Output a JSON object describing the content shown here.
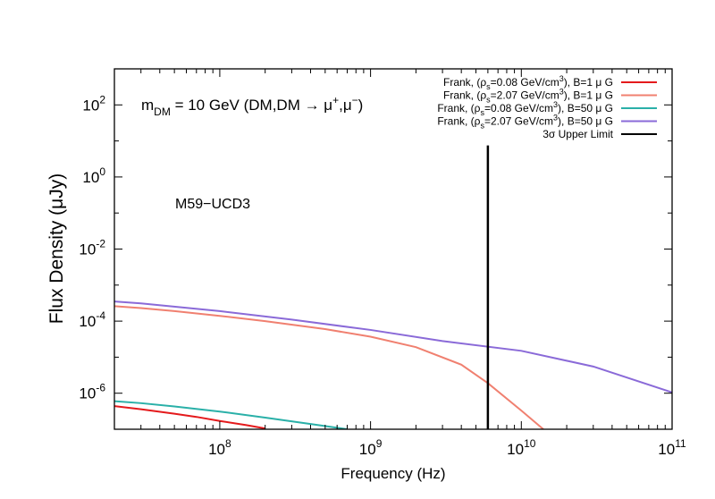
{
  "chart_data": {
    "type": "line",
    "xscale": "log",
    "yscale": "log",
    "xlim": [
      20000000,
      100000000000
    ],
    "ylim": [
      1e-07,
      1000
    ],
    "xlabel": "Frequency (Hz)",
    "ylabel": "Flux Density (μJy)",
    "x_ticks": [
      {
        "value": 100000000,
        "base": "10",
        "exp": "8"
      },
      {
        "value": 1000000000,
        "base": "10",
        "exp": "9"
      },
      {
        "value": 10000000000,
        "base": "10",
        "exp": "10"
      },
      {
        "value": 100000000000,
        "base": "10",
        "exp": "11"
      }
    ],
    "y_ticks": [
      {
        "value": 100,
        "base": "10",
        "exp": "2"
      },
      {
        "value": 1,
        "base": "10",
        "exp": "0"
      },
      {
        "value": 0.01,
        "base": "10",
        "exp": "-2"
      },
      {
        "value": 0.0001,
        "base": "10",
        "exp": "-4"
      },
      {
        "value": 1e-06,
        "base": "10",
        "exp": "-6"
      }
    ],
    "annotations": {
      "mass": {
        "prefix": "m",
        "sub": "DM",
        "text": " = 10 GeV (DM,DM → μ",
        "sup1": "+",
        "mid": ",μ",
        "sup2": "−",
        "end": ")"
      },
      "source": "M59−UCD3"
    },
    "legend_placement": "top-right",
    "series": [
      {
        "name": "Frank, (ρs=0.08 GeV/cm3), B=1 μ G",
        "legend": {
          "a": "Frank, (ρ",
          "sub": "s",
          "b": "=0.08 GeV/cm",
          "sup": "3",
          "c": "), B=1 μ G"
        },
        "color": "#e41a1c",
        "x": [
          20000000,
          30000000,
          50000000,
          70000000,
          100000000,
          150000000,
          200000000
        ],
        "y": [
          4.4e-07,
          3.6e-07,
          2.7e-07,
          2.2e-07,
          1.7e-07,
          1.3e-07,
          1.05e-07
        ]
      },
      {
        "name": "Frank, (ρs=2.07 GeV/cm3), B=1 μ G",
        "legend": {
          "a": "Frank, (ρ",
          "sub": "s",
          "b": "=2.07 GeV/cm",
          "sup": "3",
          "c": "), B=1 μ G"
        },
        "color": "#f08070",
        "x": [
          20000000,
          30000000,
          50000000,
          100000000,
          200000000,
          500000000,
          1000000000,
          2000000000,
          4000000000,
          6000000000,
          10000000000,
          14000000000
        ],
        "y": [
          0.00026,
          0.00023,
          0.00019,
          0.00014,
          0.0001,
          6e-05,
          3.7e-05,
          1.9e-05,
          6.2e-06,
          1.9e-06,
          3.3e-07,
          1e-07
        ]
      },
      {
        "name": "Frank, (ρs=0.08 GeV/cm3), B=50 μ G",
        "legend": {
          "a": "Frank, (ρ",
          "sub": "s",
          "b": "=0.08 GeV/cm",
          "sup": "3",
          "c": "), B=50 μ G"
        },
        "color": "#2ab0a8",
        "x": [
          20000000,
          30000000,
          50000000,
          100000000,
          200000000,
          400000000,
          700000000
        ],
        "y": [
          6e-07,
          5.3e-07,
          4.3e-07,
          3.1e-07,
          2.1e-07,
          1.4e-07,
          1e-07
        ]
      },
      {
        "name": "Frank, (ρs=2.07 GeV/cm3), B=50 μ G",
        "legend": {
          "a": "Frank, (ρ",
          "sub": "s",
          "b": "=2.07 GeV/cm",
          "sup": "3",
          "c": "), B=50 μ G"
        },
        "color": "#8a6ad8",
        "x": [
          20000000,
          30000000,
          100000000,
          300000000,
          1000000000,
          3000000000,
          10000000000,
          30000000000,
          100000000000
        ],
        "y": [
          0.00035,
          0.00031,
          0.00019,
          0.00011,
          5.7e-05,
          2.8e-05,
          1.5e-05,
          5.5e-06,
          1.05e-06
        ]
      },
      {
        "name": "3σ Upper Limit",
        "legend": {
          "a": "3σ Upper Limit",
          "sub": "",
          "b": "",
          "sup": "",
          "c": ""
        },
        "color": "#000000",
        "type": "vertical",
        "x": [
          6000000000,
          6000000000
        ],
        "y": [
          1e-07,
          7.5
        ]
      }
    ]
  }
}
